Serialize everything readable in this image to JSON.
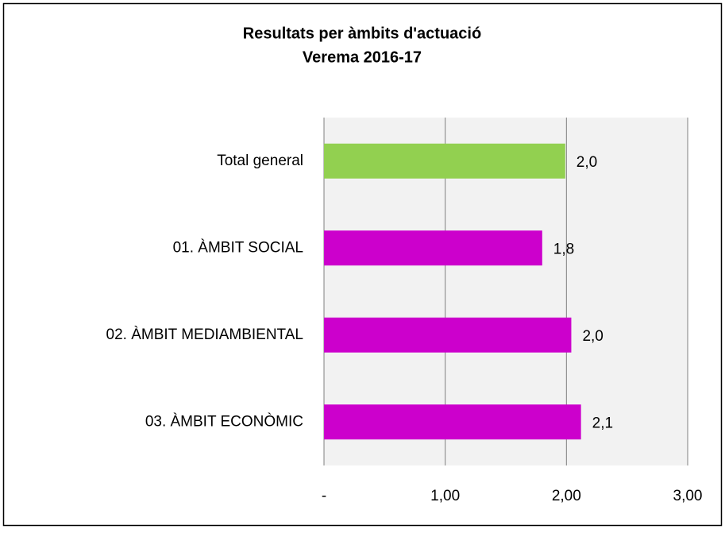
{
  "chart_data": {
    "type": "barh",
    "title": [
      "Resultats per àmbits d'actuació",
      "Verema 2016-17"
    ],
    "categories": [
      "Total general",
      "01. ÀMBIT SOCIAL",
      "02. ÀMBIT MEDIAMBIENTAL",
      "03. ÀMBIT ECONÒMIC"
    ],
    "values": [
      1.99,
      1.8,
      2.04,
      2.12
    ],
    "value_labels": [
      "2,0",
      "1,8",
      "2,0",
      "2,1"
    ],
    "colors": [
      "#92d050",
      "#cc00cc",
      "#cc00cc",
      "#cc00cc"
    ],
    "xlim": [
      0,
      3
    ],
    "xticks": [
      {
        "value": 0,
        "label": "-"
      },
      {
        "value": 1,
        "label": "1,00"
      },
      {
        "value": 2,
        "label": "2,00"
      },
      {
        "value": 3,
        "label": "3,00"
      }
    ],
    "grid": true
  }
}
